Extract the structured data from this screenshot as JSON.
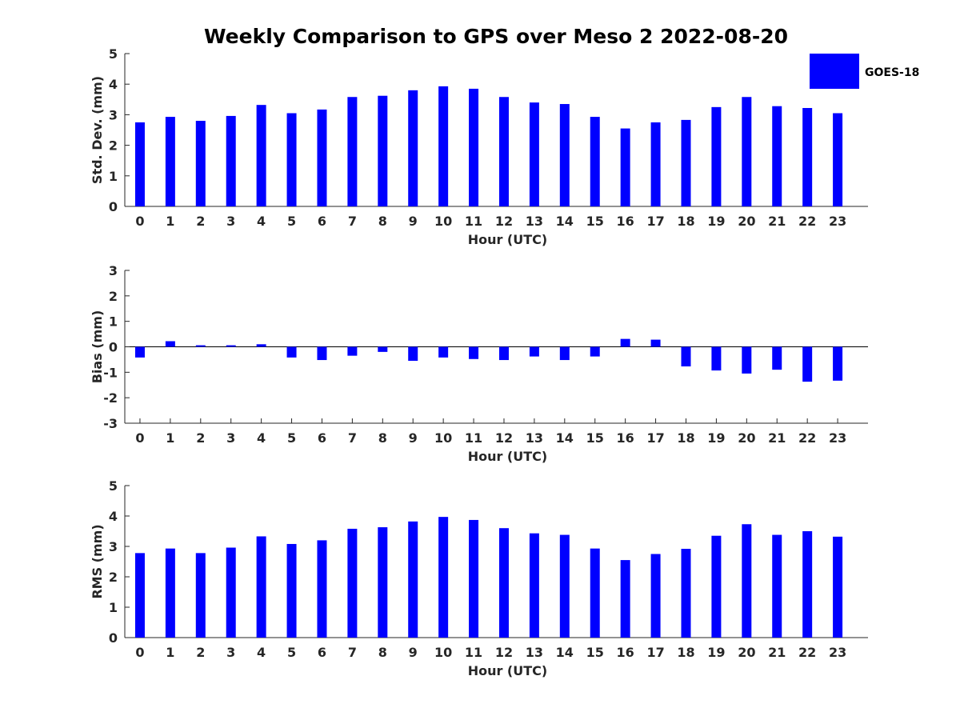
{
  "chart_data": {
    "title": "Weekly Comparison to GPS over Meso 2 2022-08-20",
    "bar_color": "#0000ff",
    "legend": {
      "entries": [
        "GOES-18"
      ],
      "placement": "top-right"
    },
    "panels": [
      {
        "type": "bar",
        "id": "stddev",
        "xlabel": "Hour (UTC)",
        "ylabel": "Std. Dev. (mm)",
        "ylim": [
          0,
          5
        ],
        "yticks": [
          0,
          1,
          2,
          3,
          4,
          5
        ],
        "categories": [
          "0",
          "1",
          "2",
          "3",
          "4",
          "5",
          "6",
          "7",
          "8",
          "9",
          "10",
          "11",
          "12",
          "13",
          "14",
          "15",
          "16",
          "17",
          "18",
          "19",
          "20",
          "21",
          "22",
          "23"
        ],
        "series": [
          {
            "name": "GOES-18",
            "values": [
              2.75,
              2.93,
              2.8,
              2.96,
              3.32,
              3.05,
              3.17,
              3.58,
              3.62,
              3.8,
              3.93,
              3.85,
              3.58,
              3.4,
              3.35,
              2.93,
              2.55,
              2.75,
              2.83,
              3.25,
              3.58,
              3.28,
              3.22,
              3.05
            ]
          }
        ]
      },
      {
        "type": "bar",
        "id": "bias",
        "xlabel": "Hour (UTC)",
        "ylabel": "Bias (mm)",
        "ylim": [
          -3,
          3
        ],
        "yticks": [
          -3,
          -2,
          -1,
          0,
          1,
          2,
          3
        ],
        "categories": [
          "0",
          "1",
          "2",
          "3",
          "4",
          "5",
          "6",
          "7",
          "8",
          "9",
          "10",
          "11",
          "12",
          "13",
          "14",
          "15",
          "16",
          "17",
          "18",
          "19",
          "20",
          "21",
          "22",
          "23"
        ],
        "series": [
          {
            "name": "GOES-18",
            "values": [
              -0.42,
              0.22,
              0.06,
              0.06,
              0.1,
              -0.42,
              -0.52,
              -0.35,
              -0.2,
              -0.55,
              -0.42,
              -0.48,
              -0.52,
              -0.38,
              -0.52,
              -0.38,
              0.31,
              0.28,
              -0.77,
              -0.93,
              -1.05,
              -0.9,
              -1.37,
              -1.33
            ]
          }
        ]
      },
      {
        "type": "bar",
        "id": "rms",
        "xlabel": "Hour (UTC)",
        "ylabel": "RMS (mm)",
        "ylim": [
          0,
          5
        ],
        "yticks": [
          0,
          1,
          2,
          3,
          4,
          5
        ],
        "categories": [
          "0",
          "1",
          "2",
          "3",
          "4",
          "5",
          "6",
          "7",
          "8",
          "9",
          "10",
          "11",
          "12",
          "13",
          "14",
          "15",
          "16",
          "17",
          "18",
          "19",
          "20",
          "21",
          "22",
          "23"
        ],
        "series": [
          {
            "name": "GOES-18",
            "values": [
              2.78,
              2.93,
              2.78,
              2.96,
              3.33,
              3.08,
              3.2,
              3.58,
              3.63,
              3.82,
              3.97,
              3.87,
              3.6,
              3.43,
              3.38,
              2.93,
              2.55,
              2.75,
              2.92,
              3.35,
              3.73,
              3.38,
              3.5,
              3.32
            ]
          }
        ]
      }
    ]
  }
}
